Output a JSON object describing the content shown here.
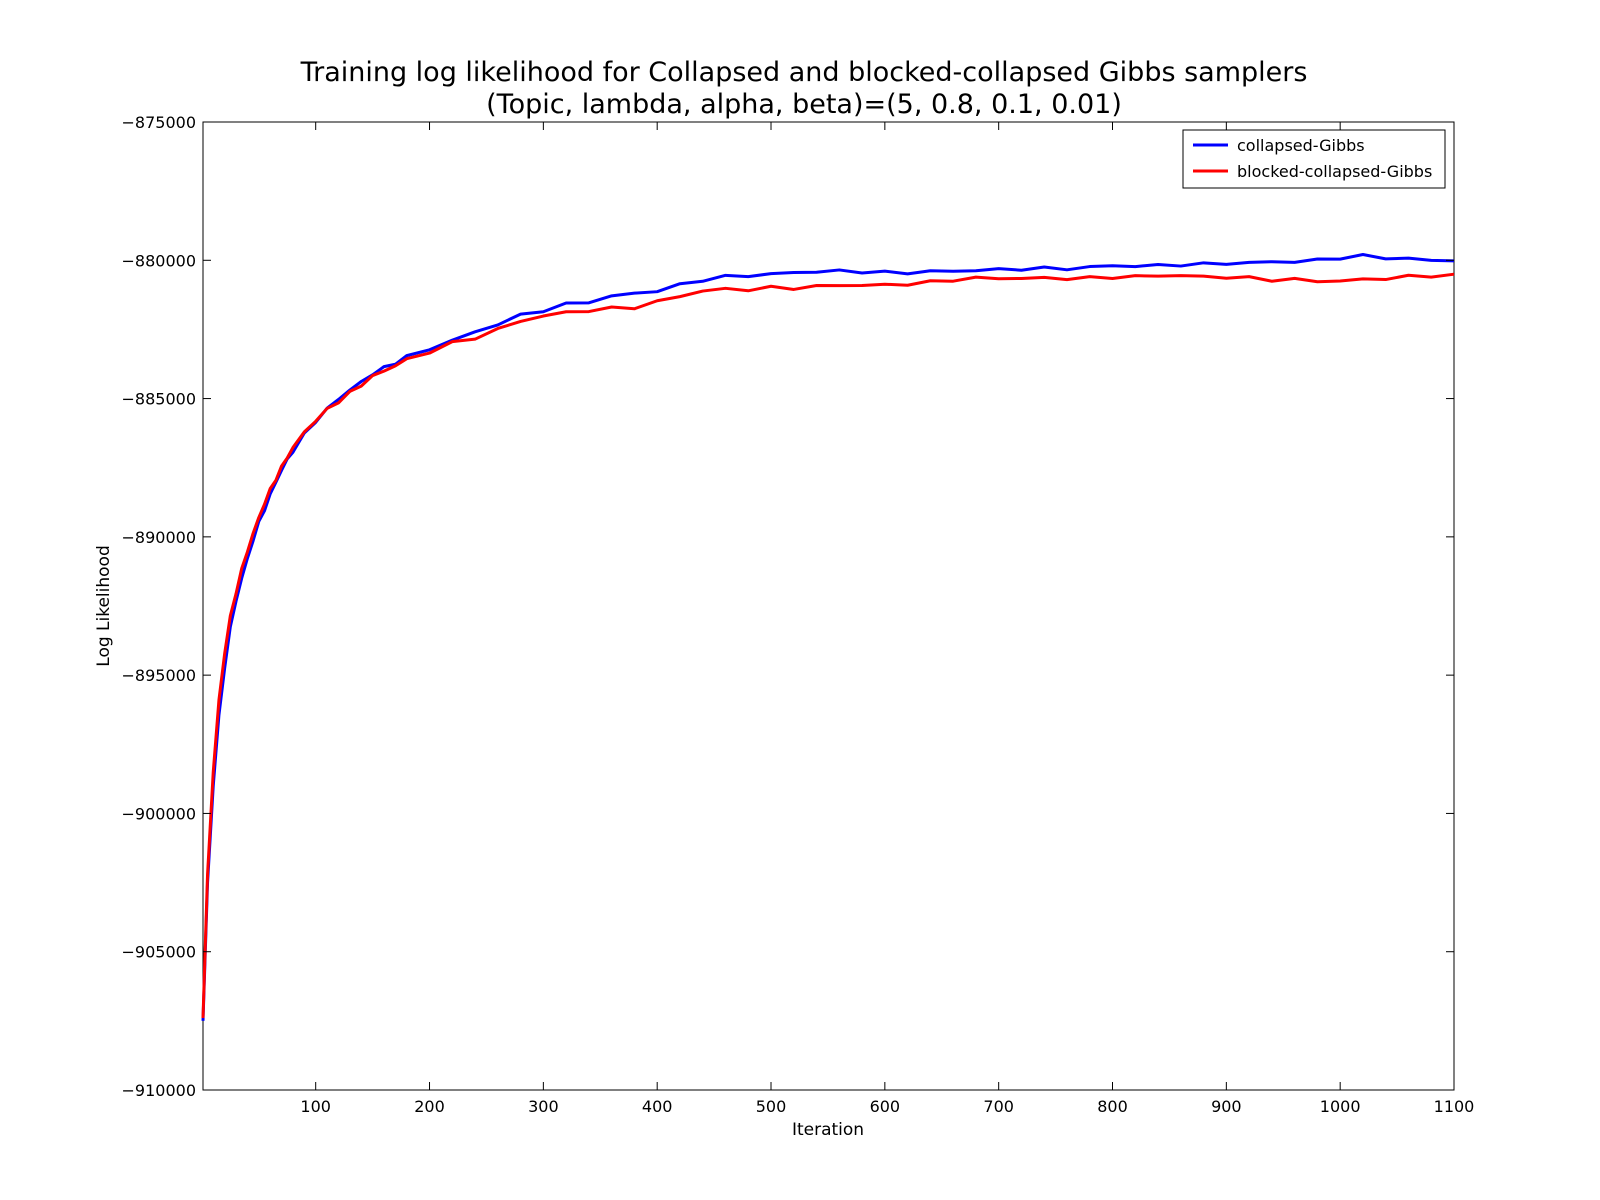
{
  "chart_data": {
    "type": "line",
    "title": "Training log likelihood for Collapsed and blocked-collapsed Gibbs samplers",
    "subtitle": "(Topic, lambda, alpha, beta)=(5, 0.8, 0.1, 0.01)",
    "xlabel": "Iteration",
    "ylabel": "Log Likelihood",
    "xlim": [
      1,
      1100
    ],
    "ylim": [
      -910000,
      -875000
    ],
    "xticks": [
      100,
      200,
      300,
      400,
      500,
      600,
      700,
      800,
      900,
      1000,
      1100
    ],
    "yticks": [
      -875000,
      -880000,
      -885000,
      -890000,
      -895000,
      -900000,
      -905000,
      -910000
    ],
    "xtick_labels": [
      "100",
      "200",
      "300",
      "400",
      "500",
      "600",
      "700",
      "800",
      "900",
      "1000",
      "1100"
    ],
    "ytick_labels": [
      "−875000",
      "−880000",
      "−885000",
      "−890000",
      "−895000",
      "−900000",
      "−905000",
      "−910000"
    ],
    "grid": false,
    "legend_position": "top-right",
    "series": [
      {
        "name": "collapsed-Gibbs",
        "color": "#0000ff",
        "x": [
          1,
          5,
          10,
          15,
          20,
          25,
          30,
          35,
          40,
          45,
          50,
          55,
          60,
          65,
          70,
          75,
          80,
          90,
          100,
          110,
          120,
          130,
          140,
          150,
          160,
          170,
          180,
          200,
          220,
          240,
          260,
          280,
          300,
          320,
          340,
          360,
          380,
          400,
          420,
          440,
          460,
          480,
          500,
          520,
          540,
          560,
          580,
          600,
          620,
          640,
          660,
          680,
          700,
          720,
          740,
          760,
          780,
          800,
          820,
          840,
          860,
          880,
          900,
          920,
          940,
          960,
          980,
          1000,
          1020,
          1040,
          1060,
          1080,
          1100
        ],
        "y": [
          -907500,
          -902500,
          -899000,
          -896500,
          -894700,
          -893300,
          -892300,
          -891500,
          -890800,
          -890100,
          -889500,
          -889000,
          -888500,
          -888000,
          -887600,
          -887200,
          -886900,
          -886300,
          -885800,
          -885400,
          -885000,
          -884700,
          -884400,
          -884100,
          -883900,
          -883700,
          -883500,
          -883200,
          -882900,
          -882600,
          -882300,
          -882000,
          -881800,
          -881600,
          -881500,
          -881300,
          -881200,
          -881100,
          -880900,
          -880700,
          -880600,
          -880550,
          -880500,
          -880450,
          -880400,
          -880400,
          -880400,
          -880450,
          -880450,
          -880400,
          -880400,
          -880350,
          -880350,
          -880300,
          -880300,
          -880300,
          -880250,
          -880200,
          -880200,
          -880200,
          -880150,
          -880150,
          -880100,
          -880100,
          -880050,
          -880050,
          -880000,
          -879900,
          -879850,
          -879900,
          -879950,
          -880000,
          -880000
        ]
      },
      {
        "name": "blocked-collapsed-Gibbs",
        "color": "#ff0000",
        "x": [
          1,
          5,
          10,
          15,
          20,
          25,
          30,
          35,
          40,
          45,
          50,
          55,
          60,
          65,
          70,
          75,
          80,
          90,
          100,
          110,
          120,
          130,
          140,
          150,
          160,
          170,
          180,
          200,
          220,
          240,
          260,
          280,
          300,
          320,
          340,
          360,
          380,
          400,
          420,
          440,
          460,
          480,
          500,
          520,
          540,
          560,
          580,
          600,
          620,
          640,
          660,
          680,
          700,
          720,
          740,
          760,
          780,
          800,
          820,
          840,
          860,
          880,
          900,
          920,
          940,
          960,
          980,
          1000,
          1020,
          1040,
          1060,
          1080,
          1100
        ],
        "y": [
          -907400,
          -902200,
          -898500,
          -895900,
          -894200,
          -892900,
          -892000,
          -891200,
          -890500,
          -889900,
          -889300,
          -888800,
          -888300,
          -887900,
          -887500,
          -887100,
          -886800,
          -886200,
          -885800,
          -885400,
          -885100,
          -884800,
          -884500,
          -884200,
          -884000,
          -883800,
          -883600,
          -883300,
          -883000,
          -882800,
          -882500,
          -882200,
          -882000,
          -881900,
          -881800,
          -881750,
          -881700,
          -881500,
          -881300,
          -881100,
          -881050,
          -881050,
          -881000,
          -881000,
          -880950,
          -880900,
          -880900,
          -880900,
          -880850,
          -880800,
          -880700,
          -880650,
          -880650,
          -880650,
          -880650,
          -880650,
          -880650,
          -880600,
          -880600,
          -880550,
          -880550,
          -880600,
          -880600,
          -880650,
          -880700,
          -880700,
          -880750,
          -880750,
          -880700,
          -880650,
          -880600,
          -880550,
          -880550
        ]
      }
    ]
  }
}
